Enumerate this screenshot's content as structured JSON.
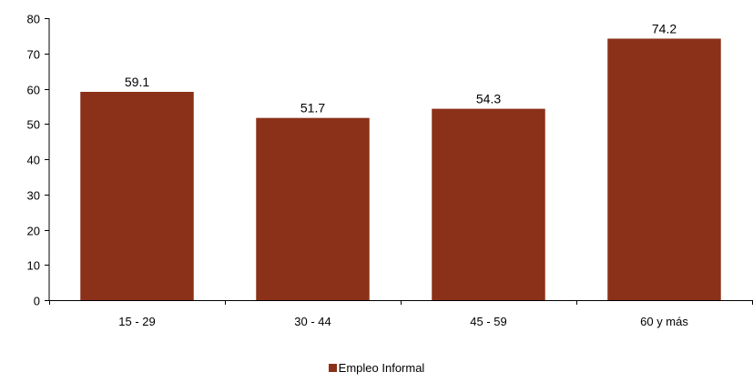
{
  "chart_data": {
    "type": "bar",
    "categories": [
      "15 - 29",
      "30 - 44",
      "45 - 59",
      "60 y más"
    ],
    "series": [
      {
        "name": "Empleo Informal",
        "values": [
          59.1,
          51.7,
          54.3,
          74.2
        ],
        "data_labels": [
          "59.1",
          "51.7",
          "54.3",
          "74.2"
        ]
      }
    ],
    "ylim": [
      0,
      80
    ],
    "yticks": [
      0,
      10,
      20,
      30,
      40,
      50,
      60,
      70,
      80
    ],
    "ytick_labels": [
      "0",
      "10",
      "20",
      "30",
      "40",
      "50",
      "60",
      "70",
      "80"
    ],
    "grid": false,
    "legend_position": "bottom-center",
    "colors": {
      "bar": "#8B3119",
      "axis": "#000000",
      "text": "#000000"
    }
  }
}
